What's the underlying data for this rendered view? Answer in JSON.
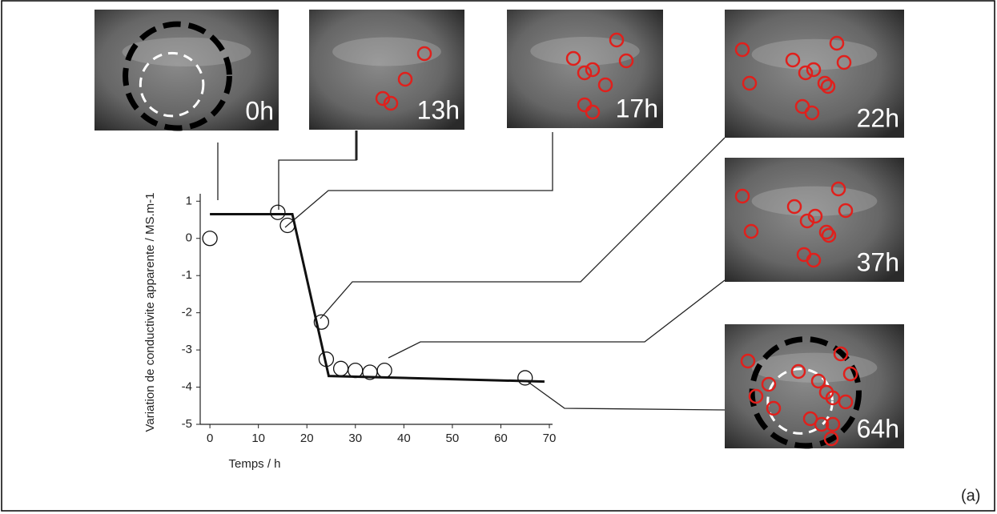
{
  "chart_data": {
    "type": "scatter",
    "xlabel": "Temps / h",
    "ylabel": "Variation de conductivite apparente / MS.m-1",
    "x": [
      0,
      14,
      16,
      23,
      24,
      27,
      30,
      33,
      36,
      65
    ],
    "values": [
      0,
      0.7,
      0.35,
      -2.25,
      -3.25,
      -3.5,
      -3.55,
      -3.6,
      -3.55,
      -3.75
    ],
    "fit_x": [
      0,
      17,
      24.5,
      69
    ],
    "fit_values": [
      0.65,
      0.65,
      -3.7,
      -3.85
    ],
    "xlim": [
      -2,
      70
    ],
    "ylim": [
      -5,
      1.2
    ],
    "xticks": [
      0,
      10,
      20,
      30,
      40,
      50,
      60,
      70
    ],
    "yticks": [
      -5,
      -4,
      -3,
      -2,
      -1,
      0,
      1
    ],
    "annotations": [
      "0h",
      "13h",
      "17h",
      "22h",
      "37h",
      "64h"
    ],
    "panel_label": "(a)"
  }
}
